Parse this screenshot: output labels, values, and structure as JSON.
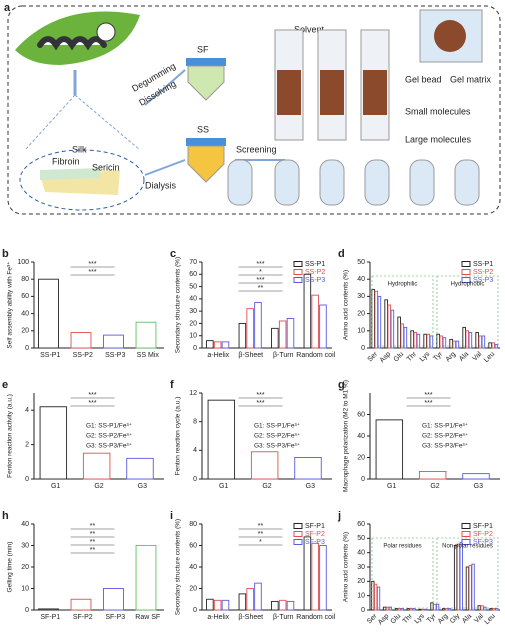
{
  "diagram": {
    "label": "a",
    "solvent": "Solvent",
    "sf": "SF",
    "ss": "SS",
    "degumming": "Degumming",
    "dissolving": "Dissolving",
    "silk": "Silk",
    "fibroin": "Fibroin",
    "sericin": "Sericin",
    "dialysis": "Dialysis",
    "screening": "Screening",
    "gel_bead": "Gel bead",
    "gel_matrix": "Gel matrix",
    "small_molecules": "Small molecules",
    "large_molecules": "Large molecules"
  },
  "chart_data": [
    {
      "type": "bar",
      "label": "b",
      "ylabel": "Self assembly ability with Fe³⁺",
      "categories": [
        "SS-P1",
        "SS-P2",
        "SS-P3",
        "SS Mix"
      ],
      "values": [
        80,
        18,
        15,
        30
      ],
      "colors": [
        "#222222",
        "#e05050",
        "#5a5ae0",
        "#60c060"
      ],
      "ylim": [
        0,
        100
      ],
      "yticks": [
        0,
        20,
        40,
        60,
        80,
        100
      ],
      "significance": [
        "***",
        "***"
      ]
    },
    {
      "type": "bar",
      "label": "c",
      "ylabel": "Secondary structure contents (%)",
      "categories": [
        "a-Helix",
        "β-Sheet",
        "β-Turn",
        "Random coil"
      ],
      "series": [
        {
          "name": "SS-P1",
          "color": "#222222",
          "values": [
            6,
            20,
            16,
            60
          ]
        },
        {
          "name": "SS-P2",
          "color": "#e05050",
          "values": [
            5,
            32,
            22,
            43
          ]
        },
        {
          "name": "SS-P3",
          "color": "#5a5ae0",
          "values": [
            5,
            37,
            24,
            35
          ]
        }
      ],
      "ylim": [
        0,
        70
      ],
      "yticks": [
        0,
        10,
        20,
        30,
        40,
        50,
        60,
        70
      ],
      "significance": [
        "***",
        "*",
        "***",
        "**"
      ]
    },
    {
      "type": "bar",
      "label": "d",
      "ylabel": "Amino acid contents (%)",
      "categories": [
        "Ser",
        "Asp",
        "Glu",
        "Thr",
        "Lys",
        "Tyr",
        "Arg",
        "Ala",
        "Val",
        "Leu"
      ],
      "series": [
        {
          "name": "SS-P1",
          "color": "#222222",
          "values": [
            34,
            28,
            18,
            10,
            8,
            8,
            5,
            12,
            9,
            3
          ]
        },
        {
          "name": "SS-P2",
          "color": "#e05050",
          "values": [
            33,
            25,
            14,
            9,
            8,
            7,
            4,
            10,
            7,
            3
          ]
        },
        {
          "name": "SS-P3",
          "color": "#5a5ae0",
          "values": [
            30,
            22,
            12,
            8,
            7,
            6,
            4,
            9,
            7,
            2
          ]
        }
      ],
      "ylim": [
        0,
        50
      ],
      "yticks": [
        0,
        10,
        20,
        30,
        40,
        50
      ],
      "annotations": [
        "Hydrophilic",
        "Hydrophobic"
      ]
    },
    {
      "type": "bar",
      "label": "e",
      "ylabel": "Fenton reaction activity (a.u.)",
      "categories": [
        "G1",
        "G2",
        "G3"
      ],
      "values": [
        4.2,
        1.5,
        1.2
      ],
      "colors": [
        "#222222",
        "#e05050",
        "#5a5ae0"
      ],
      "ylim": [
        0,
        5
      ],
      "yticks": [
        0,
        2,
        4
      ],
      "significance": [
        "***",
        "***"
      ],
      "notes": [
        "G1: SS-P1/Fe³⁺",
        "G2: SS-P2/Fe³⁺",
        "G3: SS-P3/Fe³⁺"
      ]
    },
    {
      "type": "bar",
      "label": "f",
      "ylabel": "Fenton reaction cycle (a.u.)",
      "categories": [
        "G1",
        "G2",
        "G3"
      ],
      "values": [
        11,
        3.8,
        3
      ],
      "colors": [
        "#222222",
        "#e05050",
        "#5a5ae0"
      ],
      "ylim": [
        0,
        12
      ],
      "yticks": [
        0,
        4,
        8,
        12
      ],
      "significance": [
        "***",
        "***"
      ],
      "notes": [
        "G1: SS-P1/Fe³⁺",
        "G2: SS-P2/Fe³⁺",
        "G3: SS-P3/Fe³⁺"
      ]
    },
    {
      "type": "bar",
      "label": "g",
      "ylabel": "Macrophage polarization (M2 to M1 %)",
      "categories": [
        "G1",
        "G2",
        "G3"
      ],
      "values": [
        55,
        7,
        5
      ],
      "colors": [
        "#222222",
        "#e05050",
        "#5a5ae0"
      ],
      "ylim": [
        0,
        80
      ],
      "yticks": [
        0,
        20,
        40,
        60
      ],
      "significance": [
        "***",
        "***"
      ],
      "notes": [
        "G1: SS-P1/Fe³⁺",
        "G2: SS-P2/Fe³⁺",
        "G3: SS-P3/Fe³⁺"
      ]
    },
    {
      "type": "bar",
      "label": "h",
      "ylabel": "Gelling time (min)",
      "categories": [
        "SF-P1",
        "SF-P2",
        "SF-P3",
        "Raw SF"
      ],
      "values": [
        0.5,
        5,
        10,
        30
      ],
      "colors": [
        "#222222",
        "#e05050",
        "#5a5ae0",
        "#60c060"
      ],
      "ylim": [
        0,
        40
      ],
      "yticks": [
        0,
        10,
        20,
        30,
        40
      ],
      "significance": [
        "**",
        "**",
        "**",
        "**"
      ]
    },
    {
      "type": "bar",
      "label": "i",
      "ylabel": "Secondary structure contents (%)",
      "categories": [
        "a-Helix",
        "β-Sheet",
        "β-Turn",
        "Random coil"
      ],
      "series": [
        {
          "name": "SF-P1",
          "color": "#222222",
          "values": [
            10,
            15,
            8,
            68
          ]
        },
        {
          "name": "SF-P2",
          "color": "#e05050",
          "values": [
            9,
            20,
            9,
            62
          ]
        },
        {
          "name": "SF-P3",
          "color": "#5a5ae0",
          "values": [
            9,
            25,
            8,
            60
          ]
        }
      ],
      "ylim": [
        0,
        80
      ],
      "yticks": [
        0,
        20,
        40,
        60,
        80
      ],
      "significance": [
        "**",
        "**",
        "*"
      ]
    },
    {
      "type": "bar",
      "label": "j",
      "ylabel": "Amino acid contents (%)",
      "categories": [
        "Ser",
        "Asp",
        "Glu",
        "Thr",
        "Lys",
        "Tyr",
        "Arg",
        "Gly",
        "Ala",
        "Val",
        "Leu"
      ],
      "series": [
        {
          "name": "SF-P1",
          "color": "#222222",
          "values": [
            20,
            2,
            1,
            1,
            0.5,
            5,
            1,
            45,
            30,
            3,
            1
          ]
        },
        {
          "name": "SF-P2",
          "color": "#e05050",
          "values": [
            18,
            2,
            1,
            1,
            0.5,
            4,
            1,
            46,
            31,
            3,
            1
          ]
        },
        {
          "name": "SF-P3",
          "color": "#5a5ae0",
          "values": [
            16,
            2,
            1,
            1,
            0.5,
            4,
            1,
            47,
            32,
            2,
            1
          ]
        }
      ],
      "ylim": [
        0,
        60
      ],
      "yticks": [
        0,
        10,
        20,
        30,
        40,
        50,
        60
      ],
      "annotations": [
        "Polar residues",
        "Non-polar residues"
      ]
    }
  ]
}
